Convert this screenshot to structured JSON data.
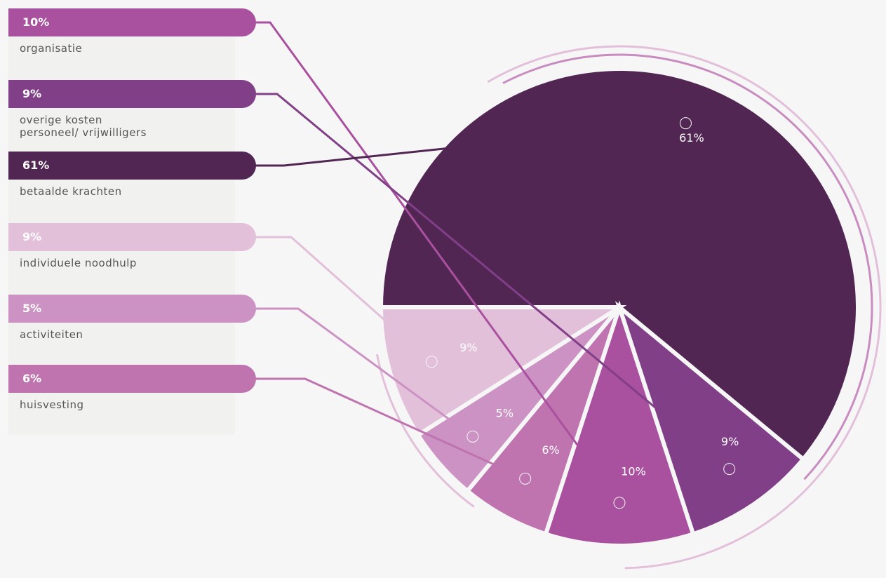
{
  "chart_data": {
    "type": "pie",
    "categories": [
      "organisatie",
      "overige kosten\npersoneel/ vrijwilligers",
      "betaalde krachten",
      "individuele noodhulp",
      "activiteiten",
      "huisvesting"
    ],
    "values": [
      10,
      9,
      61,
      9,
      5,
      6
    ],
    "value_labels": [
      "10%",
      "9%",
      "61%",
      "9%",
      "5%",
      "6%"
    ],
    "colors": [
      "#a9509f",
      "#813f88",
      "#512653",
      "#e3c0da",
      "#cc92c3",
      "#bf74b0"
    ],
    "legend": "left"
  }
}
